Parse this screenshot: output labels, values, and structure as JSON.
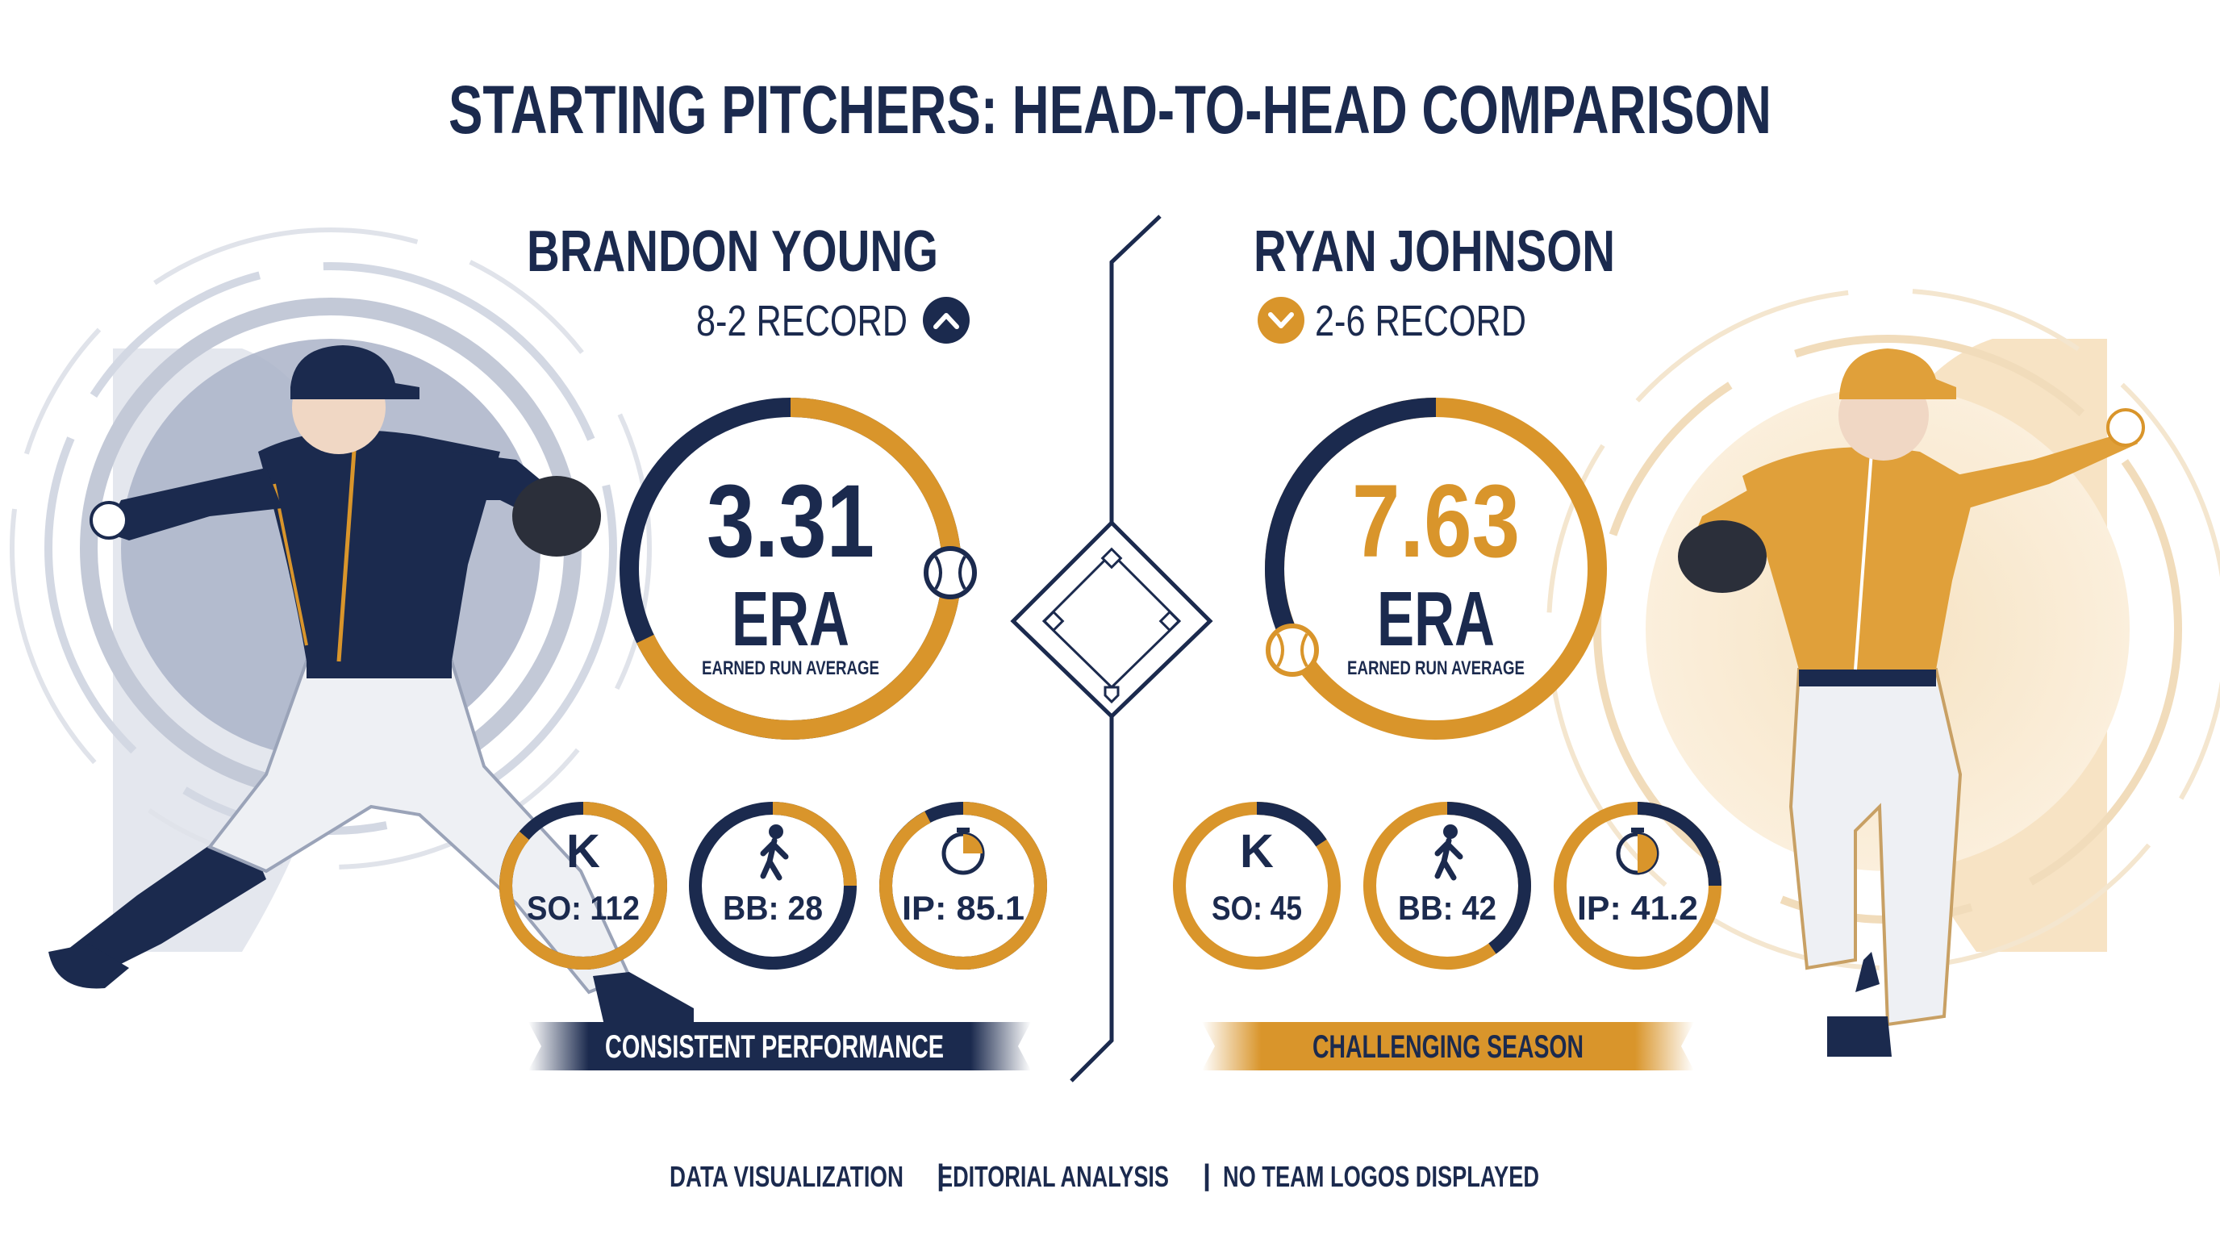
{
  "title": "STARTING PITCHERS: HEAD-TO-HEAD COMPARISON",
  "colors": {
    "navy": "#1b2a4e",
    "gold": "#d9952b",
    "light_gold": "#f3ddb8",
    "light_navy": "#c9cfdd"
  },
  "players": [
    {
      "name": "BRANDON YOUNG",
      "record": "8-2 RECORD",
      "trend_icon": "chevron-up-icon",
      "era_value": "3.31",
      "era_label": "ERA",
      "era_caption": "EARNED RUN AVERAGE",
      "stats": [
        {
          "icon": "strikeout-k-icon",
          "label": "SO: 112"
        },
        {
          "icon": "walking-person-icon",
          "label": "BB: 28"
        },
        {
          "icon": "stopwatch-icon",
          "label": "IP: 85.1"
        }
      ],
      "banner": "CONSISTENT PERFORMANCE",
      "jersey": "navy"
    },
    {
      "name": "RYAN JOHNSON",
      "record": "2-6 RECORD",
      "trend_icon": "chevron-down-icon",
      "era_value": "7.63",
      "era_label": "ERA",
      "era_caption": "EARNED RUN AVERAGE",
      "stats": [
        {
          "icon": "strikeout-k-icon",
          "label": "SO: 45"
        },
        {
          "icon": "walking-person-icon",
          "label": "BB: 42"
        },
        {
          "icon": "stopwatch-icon",
          "label": "IP: 41.2"
        }
      ],
      "banner": "CHALLENGING SEASON",
      "jersey": "gold"
    }
  ],
  "footer": {
    "items": [
      "DATA VISUALIZATION",
      "EDITORIAL ANALYSIS",
      "NO TEAM LOGOS DISPLAYED"
    ],
    "separator": "|"
  }
}
